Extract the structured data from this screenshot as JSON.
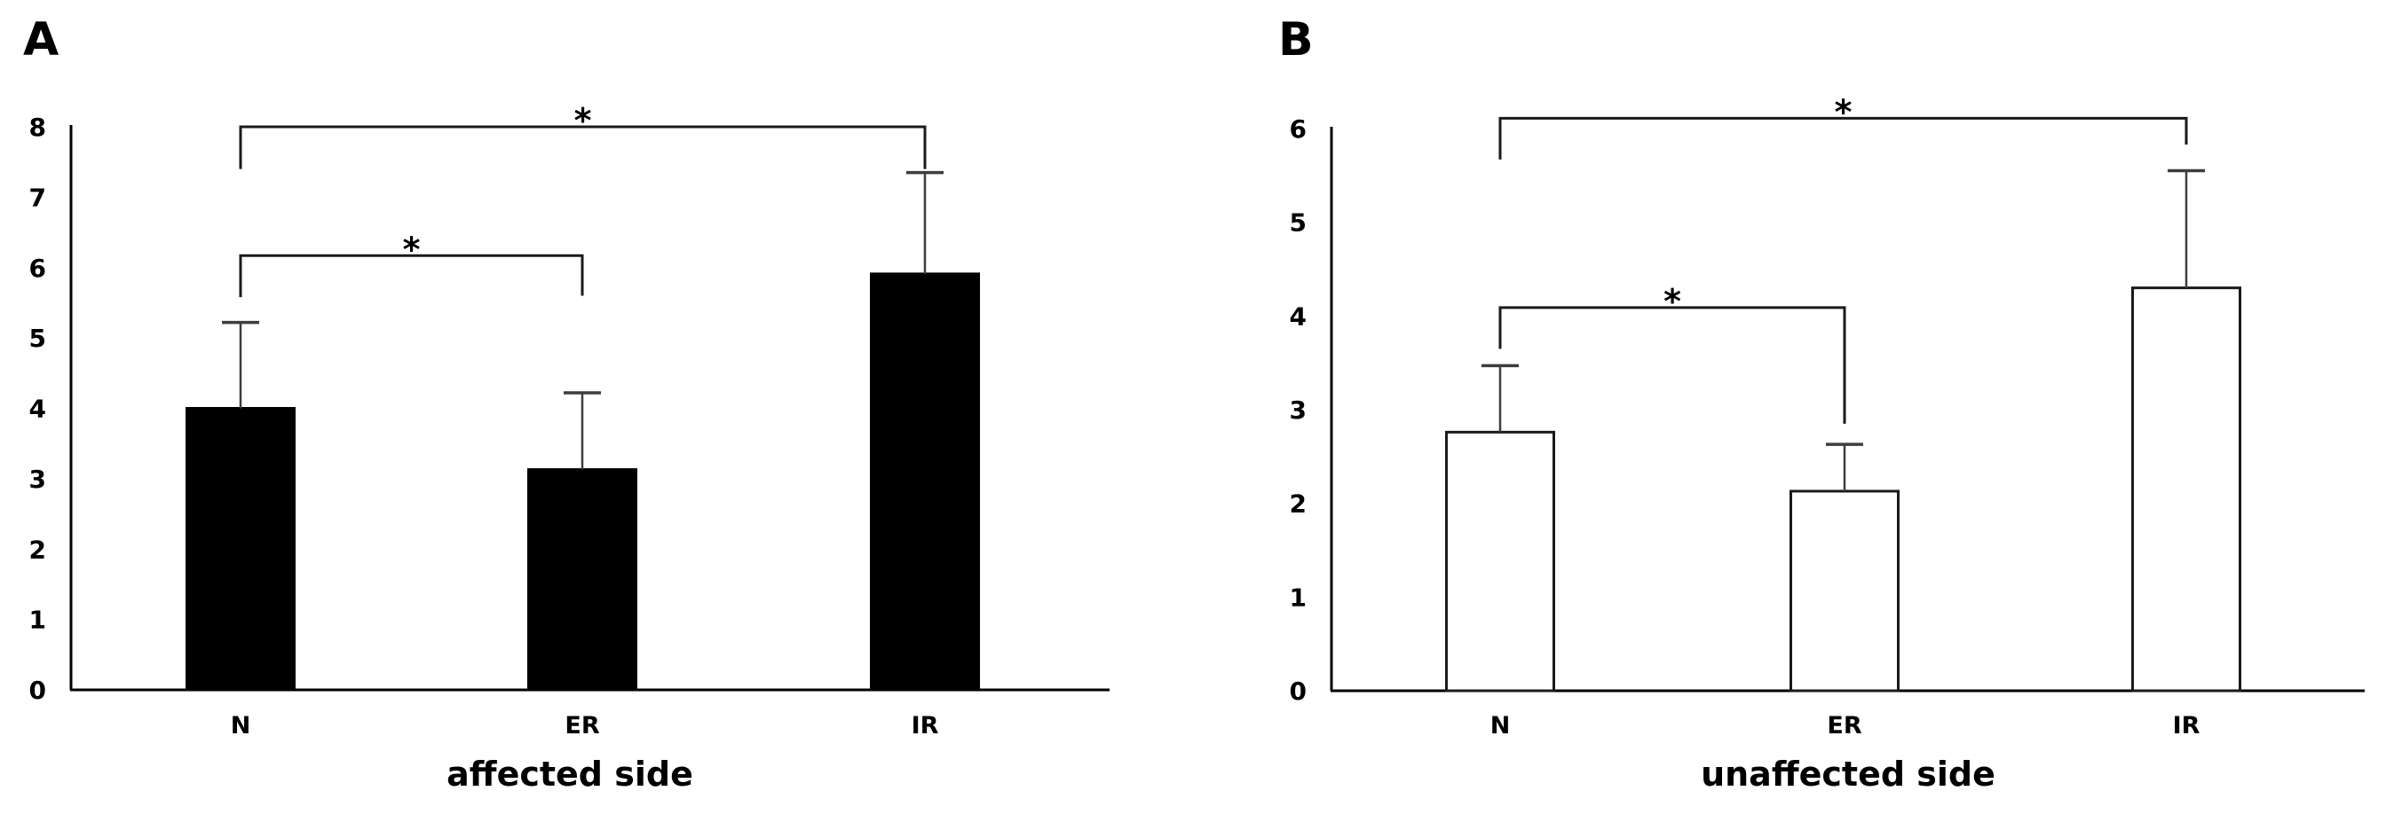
{
  "figure": {
    "background": "#ffffff",
    "text_color": "#000000",
    "axis_color": "#000000",
    "error_bar_color": "#3d3d3d",
    "bracket_color": "#1a1a1a"
  },
  "chart_data": [
    {
      "type": "bar",
      "panel_label": "A",
      "title": "",
      "xlabel": "affected side",
      "ylabel": "",
      "categories": [
        "N",
        "ER",
        "IR"
      ],
      "values": [
        4.0,
        3.13,
        5.91
      ],
      "error_top": [
        5.22,
        4.22,
        7.35
      ],
      "bar_fill": "#000000",
      "bar_stroke": "#000000",
      "ylim": [
        0,
        8
      ],
      "yticks": [
        0,
        1,
        2,
        3,
        4,
        5,
        6,
        7,
        8
      ],
      "grid": false,
      "legend": null,
      "significance_brackets": [
        {
          "from": "N",
          "to": "ER",
          "label": "*",
          "y": 6.17,
          "leg_from": 5.58,
          "leg_to": 5.6
        },
        {
          "from": "N",
          "to": "IR",
          "label": "*",
          "y": 8.0,
          "leg_from": 7.4,
          "leg_to": 7.4
        }
      ]
    },
    {
      "type": "bar",
      "panel_label": "B",
      "title": "",
      "xlabel": "unaffected side",
      "ylabel": "",
      "categories": [
        "N",
        "ER",
        "IR"
      ],
      "values": [
        2.76,
        2.13,
        4.3
      ],
      "error_top": [
        3.47,
        2.63,
        5.55
      ],
      "bar_fill": "#ffffff",
      "bar_stroke": "#1a1a1a",
      "ylim": [
        0,
        6
      ],
      "yticks": [
        0,
        1,
        2,
        3,
        4,
        5,
        6
      ],
      "grid": false,
      "legend": null,
      "significance_brackets": [
        {
          "from": "N",
          "to": "ER",
          "label": "*",
          "y": 4.09,
          "leg_from": 3.65,
          "leg_to": 2.85
        },
        {
          "from": "N",
          "to": "IR",
          "label": "*",
          "y": 6.11,
          "leg_from": 5.67,
          "leg_to": 5.83
        }
      ]
    }
  ]
}
